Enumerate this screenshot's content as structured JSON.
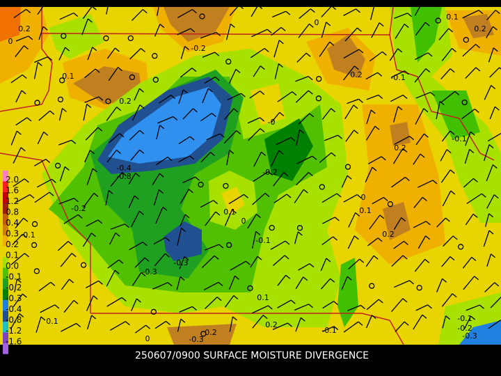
{
  "title": "250607/0900 SURFACE MOISTURE DIVERGENCE",
  "colorbar": {
    "labels": [
      "2.0",
      "1.6",
      "1.2",
      "0.8",
      "0.4",
      "0.3",
      "0.2",
      "0.1",
      "0.0",
      "-0.1",
      "-0.2",
      "-0.3",
      "-0.4",
      "-0.8",
      "-1.2",
      "-1.6"
    ]
  },
  "contour_labels": [
    "0.2",
    "0",
    "0.1",
    "-0.2",
    "0",
    "0.1",
    "0.2",
    "0.2",
    "-0.1",
    "0.2",
    "-0",
    "-0.4",
    "-0.8",
    "-0.2",
    "0.2",
    "-0.1",
    "0",
    "0.1",
    "0.1",
    "0",
    "-0.2",
    "-0.1",
    "0.2",
    "-0.3",
    "-0.3",
    "0.1",
    "0.1",
    "0.2",
    "-0.1",
    "0.2",
    "-0.3",
    "0",
    "-0.1",
    "-0.2",
    "-0.3",
    "-0.1"
  ]
}
